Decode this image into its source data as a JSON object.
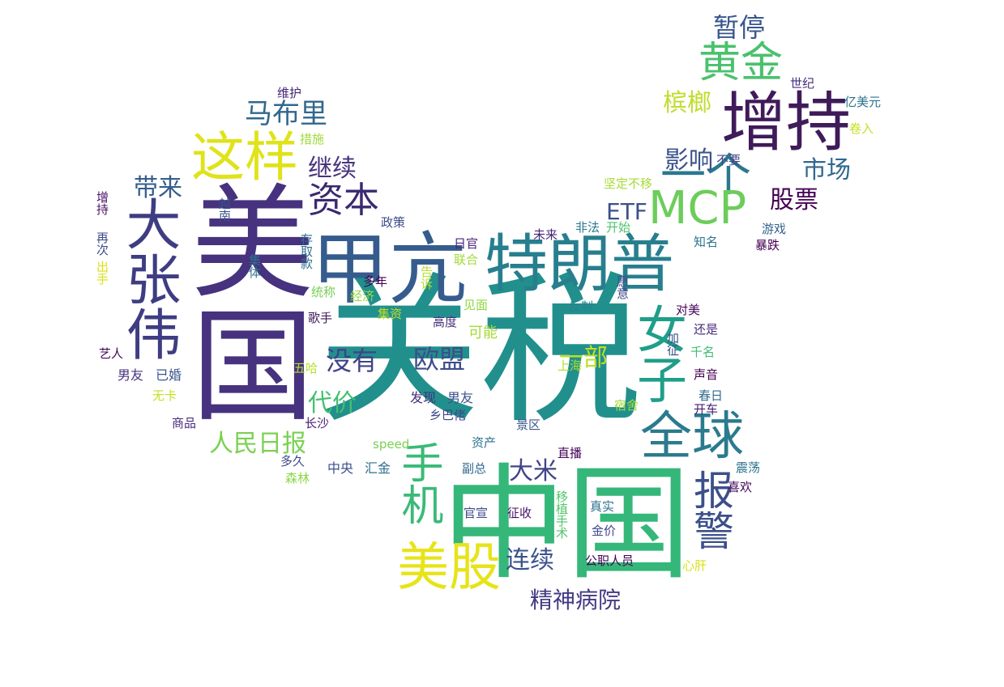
{
  "words": [
    {
      "text": "关税",
      "color": "#21908d"
    },
    {
      "text": "美国",
      "color": "#46327e"
    },
    {
      "text": "中国",
      "color": "#35b779"
    },
    {
      "text": "增持",
      "color": "#3f1b5a"
    },
    {
      "text": "特朗普",
      "color": "#277f8e"
    },
    {
      "text": "甲亢",
      "color": "#365c8d"
    },
    {
      "text": "一个",
      "color": "#2a788e"
    },
    {
      "text": "MCP",
      "color": "#6ccd5a"
    },
    {
      "text": "这样",
      "color": "#dfe318"
    },
    {
      "text": "大张伟",
      "color": "#3e3d83"
    },
    {
      "text": "女子",
      "color": "#1f9e89"
    },
    {
      "text": "全球",
      "color": "#2b7a8e"
    },
    {
      "text": "美股",
      "color": "#e6e419"
    },
    {
      "text": "手机",
      "color": "#3aba76"
    },
    {
      "text": "报警",
      "color": "#3c4f8a"
    },
    {
      "text": "黄金",
      "color": "#4ac16d"
    },
    {
      "text": "资本",
      "color": "#3a2a70"
    },
    {
      "text": "暂停",
      "color": "#39568c"
    },
    {
      "text": "马布里",
      "color": "#31688e"
    },
    {
      "text": "槟榔",
      "color": "#c1dd2f"
    },
    {
      "text": "影响",
      "color": "#3b528b"
    },
    {
      "text": "继续",
      "color": "#46337e"
    },
    {
      "text": "市场",
      "color": "#31688e"
    },
    {
      "text": "股票",
      "color": "#440154"
    },
    {
      "text": "带来",
      "color": "#365d8d"
    },
    {
      "text": "ETF",
      "color": "#3b518b"
    },
    {
      "text": "没有",
      "color": "#404387"
    },
    {
      "text": "欧盟",
      "color": "#3d4d8a"
    },
    {
      "text": "一部",
      "color": "#bddf26"
    },
    {
      "text": "代价",
      "color": "#44bf70"
    },
    {
      "text": "人民日报",
      "color": "#7ad151"
    },
    {
      "text": "大米",
      "color": "#414487"
    },
    {
      "text": "连续",
      "color": "#3b528b"
    },
    {
      "text": "精神病院",
      "color": "#443a83"
    },
    {
      "text": "维护",
      "color": "#482475"
    },
    {
      "text": "措施",
      "color": "#a0da39"
    },
    {
      "text": "世纪",
      "color": "#472d7b"
    },
    {
      "text": "亿美元",
      "color": "#2c728e"
    },
    {
      "text": "卷入",
      "color": "#c8e020"
    },
    {
      "text": "不要",
      "color": "#404688"
    },
    {
      "text": "坚定不移",
      "color": "#a8db34"
    },
    {
      "text": "增持",
      "color": "#471164"
    },
    {
      "text": "再次",
      "color": "#3e4a89"
    },
    {
      "text": "出手",
      "color": "#d8e219"
    },
    {
      "text": "越南",
      "color": "#3b528b"
    },
    {
      "text": "集体",
      "color": "#2d718e"
    },
    {
      "text": "存取款",
      "color": "#2e6f8e"
    },
    {
      "text": "政策",
      "color": "#3e4c8a"
    },
    {
      "text": "日官",
      "color": "#482677"
    },
    {
      "text": "非法",
      "color": "#2a778e"
    },
    {
      "text": "开始",
      "color": "#4ec36b"
    },
    {
      "text": "未来",
      "color": "#482576"
    },
    {
      "text": "知名",
      "color": "#2c738e"
    },
    {
      "text": "游戏",
      "color": "#33638d"
    },
    {
      "text": "暴跌",
      "color": "#440154"
    },
    {
      "text": "联合",
      "color": "#a2da37"
    },
    {
      "text": "统称",
      "color": "#75d054"
    },
    {
      "text": "多年",
      "color": "#440154"
    },
    {
      "text": "经济",
      "color": "#95d840"
    },
    {
      "text": "告诉",
      "color": "#b5de2b"
    },
    {
      "text": "愿意",
      "color": "#3e4989"
    },
    {
      "text": "集资",
      "color": "#c0df25"
    },
    {
      "text": "见面",
      "color": "#90d743"
    },
    {
      "text": "反制",
      "color": "#26828e"
    },
    {
      "text": "对美",
      "color": "#450559"
    },
    {
      "text": "歌手",
      "color": "#3f1b5a"
    },
    {
      "text": "高度",
      "color": "#462e7c"
    },
    {
      "text": "可能",
      "color": "#a5db36"
    },
    {
      "text": "加征",
      "color": "#3a538b"
    },
    {
      "text": "还是",
      "color": "#472c7a"
    },
    {
      "text": "艺人",
      "color": "#450457"
    },
    {
      "text": "千名",
      "color": "#3dbc74"
    },
    {
      "text": "五哈",
      "color": "#b8de29"
    },
    {
      "text": "上海",
      "color": "#b2dd2d"
    },
    {
      "text": "声音",
      "color": "#440154"
    },
    {
      "text": "男友",
      "color": "#46337e"
    },
    {
      "text": "已婚",
      "color": "#3a548c"
    },
    {
      "text": "发现",
      "color": "#46317e"
    },
    {
      "text": "男友",
      "color": "#3b528b"
    },
    {
      "text": "春日",
      "color": "#2f6c8e"
    },
    {
      "text": "无卡",
      "color": "#c5e021"
    },
    {
      "text": "宿舍",
      "color": "#a0da39"
    },
    {
      "text": "开车",
      "color": "#482071"
    },
    {
      "text": "商品",
      "color": "#472a7a"
    },
    {
      "text": "乡巴佬",
      "color": "#3f4889"
    },
    {
      "text": "长沙",
      "color": "#481a6c"
    },
    {
      "text": "景区",
      "color": "#39568c"
    },
    {
      "text": "speed",
      "color": "#7ad151"
    },
    {
      "text": "资产",
      "color": "#2c728e"
    },
    {
      "text": "直播",
      "color": "#450559"
    },
    {
      "text": "多久",
      "color": "#3f4788"
    },
    {
      "text": "中央",
      "color": "#3b528b"
    },
    {
      "text": "汇金",
      "color": "#2d708e"
    },
    {
      "text": "副总",
      "color": "#306a8e"
    },
    {
      "text": "震荡",
      "color": "#2c728e"
    },
    {
      "text": "森林",
      "color": "#8bd646"
    },
    {
      "text": "喜欢",
      "color": "#460a5d"
    },
    {
      "text": "移植手术",
      "color": "#52c569"
    },
    {
      "text": "官宣",
      "color": "#3e4a89"
    },
    {
      "text": "征收",
      "color": "#471365"
    },
    {
      "text": "真实",
      "color": "#2d708e"
    },
    {
      "text": "金价",
      "color": "#3e4989"
    },
    {
      "text": "公职人员",
      "color": "#440154"
    },
    {
      "text": "心肝",
      "color": "#d8e219"
    }
  ]
}
